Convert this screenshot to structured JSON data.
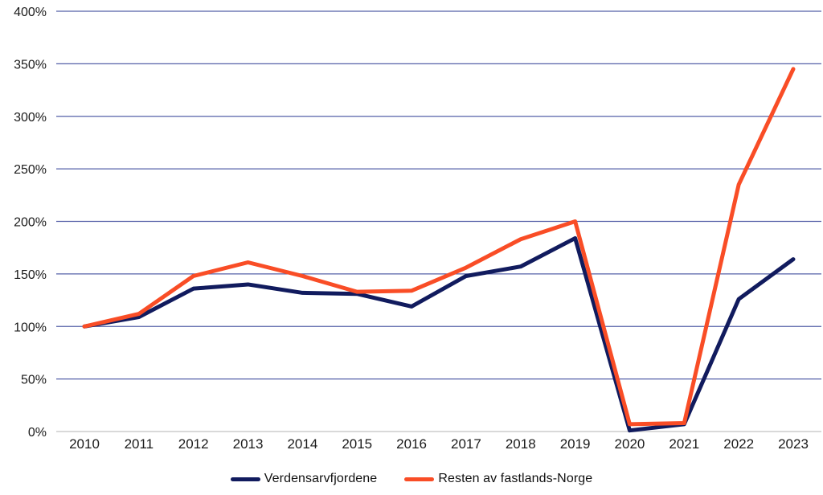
{
  "chart_data": {
    "type": "line",
    "title": "",
    "xlabel": "",
    "ylabel": "",
    "categories": [
      "2010",
      "2011",
      "2012",
      "2013",
      "2014",
      "2015",
      "2016",
      "2017",
      "2018",
      "2019",
      "2020",
      "2021",
      "2022",
      "2023"
    ],
    "series": [
      {
        "name": "Verdensarvfjordene",
        "color": "#111B5E",
        "values": [
          100,
          109,
          136,
          140,
          132,
          131,
          119,
          148,
          157,
          184,
          1,
          7,
          126,
          164
        ]
      },
      {
        "name": "Resten av fastlands-Norge",
        "color": "#F94D26",
        "values": [
          100,
          112,
          148,
          161,
          148,
          133,
          134,
          156,
          183,
          200,
          7,
          8,
          235,
          345
        ]
      }
    ],
    "ylim": [
      0,
      400
    ],
    "y_ticks": [
      "0%",
      "50%",
      "100%",
      "150%",
      "200%",
      "250%",
      "300%",
      "350%",
      "400%"
    ],
    "grid": "horizontal",
    "gridline_color": "#5560A8",
    "baseline_color": "#D9D9D9",
    "tick_label_color": "#1a1a1a",
    "legend_position": "bottom"
  }
}
